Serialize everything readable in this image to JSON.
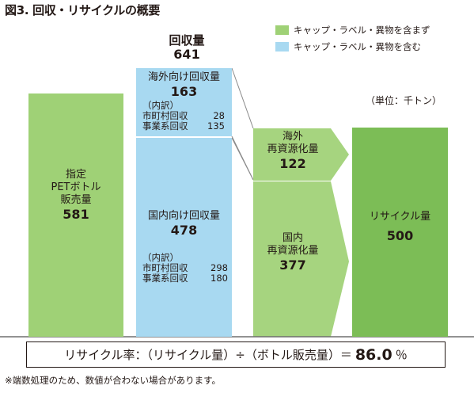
{
  "title": "図3. 回収・リサイクルの概要",
  "legend": [
    {
      "label": "キャップ・ラベル・異物を含まず",
      "color": "#9fd176"
    },
    {
      "label": "キャップ・ラベル・異物を含む",
      "color": "#a8d9f1"
    }
  ],
  "unit": "（単位：千トン）",
  "collection": {
    "label": "回収量",
    "value": "641",
    "overseas": {
      "label": "海外向け回収量",
      "value": "163",
      "breakdown_label": "（内訳）",
      "municipal_label": "市町村回収",
      "municipal_value": "28",
      "business_label": "事業系回収",
      "business_value": "135"
    },
    "domestic": {
      "label": "国内向け回収量",
      "value": "478",
      "breakdown_label": "（内訳）",
      "municipal_label": "市町村回収",
      "municipal_value": "298",
      "business_label": "事業系回収",
      "business_value": "180"
    }
  },
  "sales": {
    "line1": "指定",
    "line2": "PETボトル",
    "line3": "販売量",
    "value": "581"
  },
  "overseas_recycling": {
    "line1": "海外",
    "line2": "再資源化量",
    "value": "122"
  },
  "domestic_recycling": {
    "line1": "国内",
    "line2": "再資源化量",
    "value": "377"
  },
  "recycling": {
    "label": "リサイクル量",
    "value": "500"
  },
  "formula": {
    "text": "リサイクル率：（リサイクル量）÷（ボトル販売量）＝",
    "rate": "86.0",
    "unit": "％"
  },
  "note": "※端数処理のため、数値が合わない場合があります。",
  "colors": {
    "sales_green": "#9fd176",
    "collection_blue": "#a8d9f1",
    "flow_green": "#a6d47f",
    "recycle_green": "#7cbd56",
    "line_gray": "#8a8a8a"
  }
}
